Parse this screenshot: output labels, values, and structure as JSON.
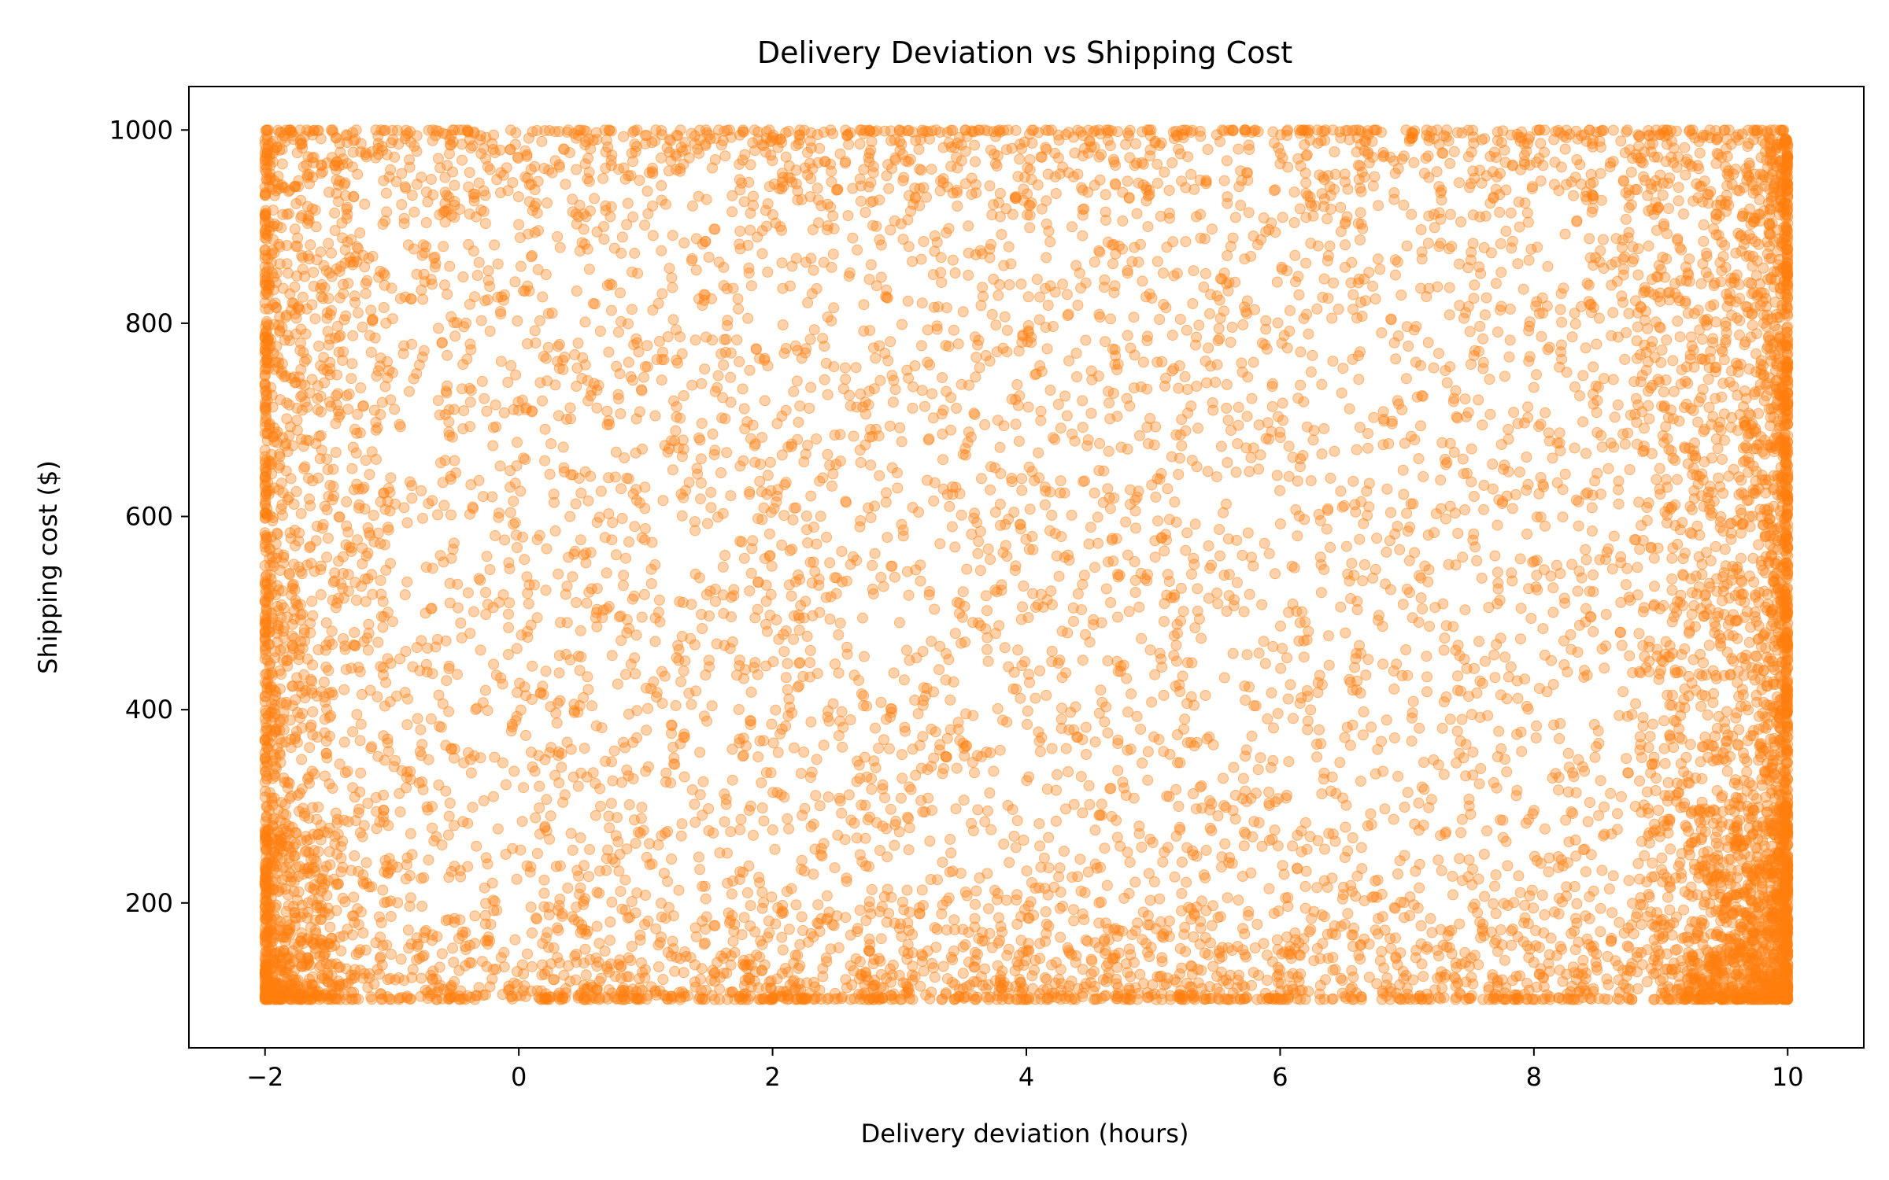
{
  "chart_data": {
    "type": "scatter",
    "title": "Delivery Deviation vs Shipping Cost",
    "xlabel": "Delivery deviation (hours)",
    "ylabel": "Shipping cost ($)",
    "xlim": [
      -2.6,
      10.6
    ],
    "ylim": [
      50,
      1045
    ],
    "x_ticks": [
      -2,
      0,
      2,
      4,
      6,
      8,
      10
    ],
    "x_tick_labels": [
      "−2",
      "0",
      "2",
      "4",
      "6",
      "8",
      "10"
    ],
    "y_ticks": [
      200,
      400,
      600,
      800,
      1000
    ],
    "y_tick_labels": [
      "200",
      "400",
      "600",
      "800",
      "1000"
    ],
    "marker_color": "#ff7f0e",
    "marker_alpha": 0.35,
    "grid": false,
    "legend": "none",
    "series": [
      {
        "x_range": [
          -2,
          10
        ],
        "y_range": [
          100,
          1000
        ],
        "distribution": "dense near all edges (x=-2, x=10, y=100, y=1000); sparser interior",
        "x": [
          -2.0,
          -1.9,
          -1.5,
          -0.8,
          0.2,
          1.1,
          2.3,
          3.4,
          4.5,
          5.6,
          6.7,
          7.8,
          8.9,
          9.6,
          10.0,
          10.0,
          9.9,
          -2.0,
          -1.95,
          0.6,
          2.9,
          4.1,
          5.2,
          6.3,
          7.4,
          8.5,
          9.3,
          9.95,
          -1.7,
          -0.4,
          1.6,
          3.0,
          4.8,
          6.0,
          7.1,
          8.2,
          9.7,
          10.0,
          -2.0,
          0.9,
          2.0,
          3.7,
          5.5,
          7.0,
          8.8,
          9.8
        ],
        "y": [
          100,
          104,
          118,
          155,
          210,
          260,
          330,
          410,
          470,
          540,
          610,
          680,
          760,
          850,
          930,
          120,
          1000,
          990,
          500,
          820,
          180,
          640,
          300,
          880,
          420,
          720,
          960,
          260,
          105,
          998,
          702,
          125,
          560,
          965,
          240,
          370,
          600,
          780,
          640,
          910,
          102,
          450,
          995,
          880,
          300,
          150
        ]
      }
    ]
  }
}
